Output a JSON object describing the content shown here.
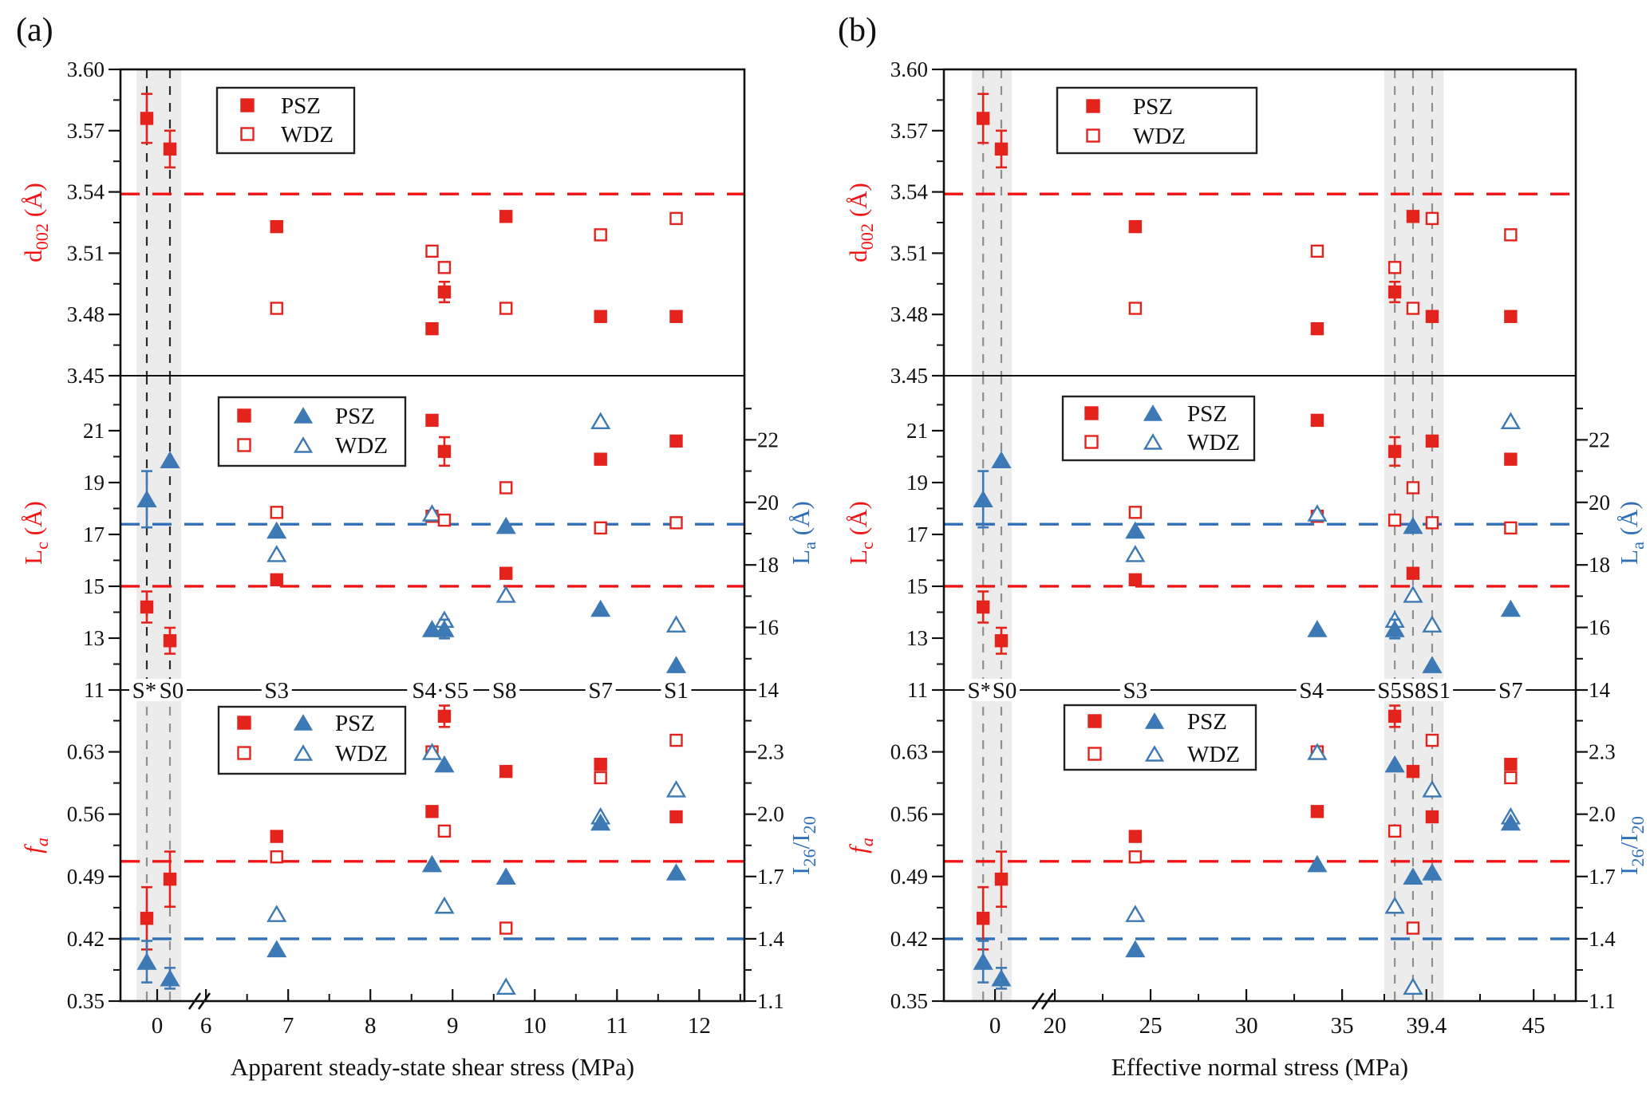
{
  "figure": {
    "background": "#ffffff",
    "colors": {
      "red": "#e3231c",
      "red_line": "#f01414",
      "blue": "#3d79b5",
      "blue_line": "#2f6fb7",
      "band": "#ececec",
      "axis": "#111111",
      "vline_dark": "#2b2b2b",
      "vline_gray": "#8f8f8f"
    }
  },
  "legend": {
    "psz": "PSZ",
    "wdz": "WDZ"
  },
  "chart_data": {
    "type": "scatter",
    "description": "XRD structural parameters (d002, Lc, La, fa, I26/I20) of PSZ and WDZ samples versus stress; panel (a) vs apparent steady-state shear stress, panel (b) vs effective normal stress",
    "subplots": {
      "top": {
        "left_label_parts": [
          {
            "t": "d"
          },
          {
            "t": "002",
            "sub": true
          },
          {
            "t": " (Å)"
          }
        ],
        "left_axis_color": "red",
        "left_range": [
          3.45,
          3.6
        ],
        "left_majors": [
          {
            "v": 3.45,
            "t": "3.45"
          },
          {
            "v": 3.48,
            "t": "3.48"
          },
          {
            "v": 3.51,
            "t": "3.51"
          },
          {
            "v": 3.54,
            "t": "3.54"
          },
          {
            "v": 3.57,
            "t": "3.57"
          },
          {
            "v": 3.6,
            "t": "3.60"
          }
        ],
        "left_minors": [
          3.465,
          3.495,
          3.525,
          3.555,
          3.585
        ],
        "hlines": [
          {
            "color": "red",
            "axis": "left",
            "value": 3.539
          }
        ],
        "legend_type": "squares"
      },
      "middle": {
        "left_label_parts": [
          {
            "t": "L"
          },
          {
            "t": "c",
            "sub": true
          },
          {
            "t": " (Å)"
          }
        ],
        "right_label_parts": [
          {
            "t": "L"
          },
          {
            "t": "a",
            "sub": true
          },
          {
            "t": " (Å)"
          }
        ],
        "left_axis_color": "red",
        "right_axis_color": "blue",
        "left_range": [
          11,
          23.12
        ],
        "right_range": [
          14,
          24.05
        ],
        "left_majors": [
          {
            "v": 11,
            "t": "11"
          },
          {
            "v": 13,
            "t": "13"
          },
          {
            "v": 15,
            "t": "15"
          },
          {
            "v": 17,
            "t": "17"
          },
          {
            "v": 19,
            "t": "19"
          },
          {
            "v": 21,
            "t": "21"
          }
        ],
        "left_minors": [
          12,
          14,
          16,
          18,
          20,
          22
        ],
        "right_majors": [
          {
            "v": 14,
            "t": "14"
          },
          {
            "v": 16,
            "t": "16"
          },
          {
            "v": 18,
            "t": "18"
          },
          {
            "v": 20,
            "t": "20"
          },
          {
            "v": 22,
            "t": "22"
          }
        ],
        "right_minors": [
          15,
          17,
          19,
          21,
          23
        ],
        "hlines": [
          {
            "color": "red",
            "axis": "left",
            "value": 15.0
          },
          {
            "color": "blue",
            "axis": "right",
            "value": 19.3
          }
        ],
        "legend_type": "squares_triangles"
      },
      "bottom": {
        "left_label_parts": [
          {
            "t": "f",
            "italic": true
          },
          {
            "t": "a",
            "sub": true,
            "italic": true
          }
        ],
        "right_label_parts": [
          {
            "t": "I"
          },
          {
            "t": "26",
            "sub": true
          },
          {
            "t": "/I"
          },
          {
            "t": "20",
            "sub": true
          }
        ],
        "left_axis_color": "red",
        "right_axis_color": "blue",
        "left_range": [
          0.35,
          0.6995
        ],
        "right_range": [
          1.1,
          2.598
        ],
        "left_majors": [
          {
            "v": 0.35,
            "t": "0.35"
          },
          {
            "v": 0.42,
            "t": "0.42"
          },
          {
            "v": 0.49,
            "t": "0.49"
          },
          {
            "v": 0.56,
            "t": "0.56"
          },
          {
            "v": 0.63,
            "t": "0.63"
          }
        ],
        "left_minors": [
          0.385,
          0.455,
          0.525,
          0.595,
          0.665
        ],
        "right_majors": [
          {
            "v": 1.1,
            "t": "1.1"
          },
          {
            "v": 1.4,
            "t": "1.4"
          },
          {
            "v": 1.7,
            "t": "1.7"
          },
          {
            "v": 2.0,
            "t": "2.0"
          },
          {
            "v": 2.3,
            "t": "2.3"
          }
        ],
        "right_minors": [
          1.25,
          1.55,
          1.85,
          2.15,
          2.45
        ],
        "hlines": [
          {
            "color": "red",
            "axis": "left",
            "value": 0.507
          },
          {
            "color": "blue",
            "axis": "right",
            "value": 1.4
          }
        ],
        "legend_type": "squares_triangles"
      }
    },
    "panels": [
      {
        "panel_label": "(a)",
        "xlabel": "Apparent steady-state shear stress (MPa)",
        "seg_a": {
          "range": [
            -0.46,
            0.48
          ],
          "ticks": [
            {
              "v": 0,
              "t": "0"
            }
          ]
        },
        "seg_b": {
          "range": [
            5.95,
            12.55
          ],
          "majors": [
            {
              "v": 6,
              "t": "6"
            },
            {
              "v": 7,
              "t": "7"
            },
            {
              "v": 8,
              "t": "8"
            },
            {
              "v": 9,
              "t": "9"
            },
            {
              "v": 10,
              "t": "10"
            },
            {
              "v": 11,
              "t": "11"
            },
            {
              "v": 12,
              "t": "12"
            }
          ],
          "minors": [
            6.5,
            7.5,
            8.5,
            9.5,
            10.5,
            11.5,
            12.5
          ]
        },
        "band_a": [
          -0.26,
          0.3
        ],
        "band_b": null,
        "vlines_a": [
          -0.13,
          0.16
        ],
        "vlines_b": [],
        "sample_labels": [
          {
            "t": "S*",
            "x": -0.16
          },
          {
            "t": "S0",
            "x": 0.18
          },
          {
            "t": "S3",
            "x": 6.86
          },
          {
            "t": "S4·S5",
            "x": 8.85
          },
          {
            "t": "S8",
            "x": 9.63
          },
          {
            "t": "S7",
            "x": 10.8
          },
          {
            "t": "S1",
            "x": 11.72
          }
        ],
        "samples": [
          {
            "name": "S*",
            "x": -0.13,
            "d002": {
              "psz": 3.576,
              "psz_err": 0.012
            },
            "lc": {
              "psz": 14.2,
              "psz_err": 0.6
            },
            "la": {
              "psz": 20.1,
              "psz_err": 0.9
            },
            "fa": {
              "psz": 0.443,
              "psz_err": 0.035
            },
            "i26_i20": {
              "psz": 1.29,
              "psz_err": 0.1
            }
          },
          {
            "name": "S0",
            "x": 0.16,
            "d002": {
              "psz": 3.561,
              "psz_err": 0.009
            },
            "lc": {
              "psz": 12.9,
              "psz_err": 0.5
            },
            "la": {
              "psz": 21.35
            },
            "fa": {
              "psz": 0.487,
              "psz_err": 0.031
            },
            "i26_i20": {
              "psz": 1.21,
              "psz_err": 0.05
            }
          },
          {
            "name": "S3",
            "x": 6.86,
            "d002": {
              "psz": 3.523,
              "wdz": 3.483
            },
            "lc": {
              "psz": 15.25,
              "wdz": 17.85
            },
            "la": {
              "psz": 19.1,
              "wdz": 18.35
            },
            "fa": {
              "psz": 0.535,
              "wdz": 0.512
            },
            "i26_i20": {
              "psz": 1.35,
              "wdz": 1.52
            }
          },
          {
            "name": "S4",
            "x": 8.75,
            "d002": {
              "psz": 3.473,
              "wdz": 3.511
            },
            "lc": {
              "psz": 21.4,
              "wdz": 17.7
            },
            "la": {
              "psz": 15.95,
              "wdz": 19.65
            },
            "fa": {
              "psz": 0.563,
              "wdz": 0.63
            },
            "i26_i20": {
              "psz": 1.76,
              "wdz": 2.3
            }
          },
          {
            "name": "S5",
            "x": 8.9,
            "d002": {
              "psz": 3.491,
              "psz_err": 0.005,
              "wdz": 3.503
            },
            "lc": {
              "psz": 20.2,
              "psz_err": 0.55,
              "wdz": 17.55
            },
            "la": {
              "psz": 15.95,
              "psz_err": 0.3,
              "wdz": 16.25
            },
            "fa": {
              "psz": 0.67,
              "psz_err": 0.012,
              "wdz": 0.541
            },
            "i26_i20": {
              "psz": 2.24,
              "wdz": 1.56
            }
          },
          {
            "name": "S8",
            "x": 9.65,
            "d002": {
              "psz": 3.528,
              "wdz": 3.483
            },
            "lc": {
              "psz": 15.5,
              "wdz": 18.8
            },
            "la": {
              "psz": 19.25,
              "wdz": 17.05
            },
            "fa": {
              "psz": 0.608,
              "wdz": 0.432
            },
            "i26_i20": {
              "psz": 1.7,
              "wdz": 1.17
            }
          },
          {
            "name": "S7",
            "x": 10.8,
            "d002": {
              "psz": 3.479,
              "wdz": 3.519
            },
            "lc": {
              "psz": 19.9,
              "wdz": 17.25
            },
            "la": {
              "psz": 16.6,
              "wdz": 22.6
            },
            "fa": {
              "psz": 0.616,
              "wdz": 0.601
            },
            "i26_i20": {
              "psz": 1.96,
              "wdz": 1.99
            }
          },
          {
            "name": "S1",
            "x": 11.72,
            "d002": {
              "psz": 3.479,
              "wdz": 3.527
            },
            "lc": {
              "psz": 20.6,
              "wdz": 17.45
            },
            "la": {
              "psz": 14.8,
              "wdz": 16.1
            },
            "fa": {
              "psz": 0.557,
              "wdz": 0.643
            },
            "i26_i20": {
              "psz": 1.72,
              "wdz": 2.12
            }
          }
        ]
      },
      {
        "panel_label": "(b)",
        "xlabel": "Effective normal stress (MPa)",
        "seg_a": {
          "range": [
            -2.67,
            2.33
          ],
          "ticks": [
            {
              "v": 0,
              "t": "0"
            }
          ]
        },
        "seg_b": {
          "range": [
            19.54,
            47.2
          ],
          "majors": [
            {
              "v": 20,
              "t": "20"
            },
            {
              "v": 25,
              "t": "25"
            },
            {
              "v": 30,
              "t": "30"
            },
            {
              "v": 35,
              "t": "35"
            },
            {
              "v": 39.4,
              "t": "39.4"
            },
            {
              "v": 45,
              "t": "45"
            }
          ],
          "minors": [
            22.5,
            27.5,
            32.5,
            37.2,
            42.2,
            46.1
          ]
        },
        "band_a": [
          -1.2,
          0.88
        ],
        "band_b": [
          37.2,
          40.3
        ],
        "vlines_a": [
          -0.62,
          0.33
        ],
        "vlines_b": [
          37.75,
          38.7,
          39.7
        ],
        "sample_labels": [
          {
            "t": "S*",
            "x": -0.8
          },
          {
            "t": "S0",
            "x": 0.5
          },
          {
            "t": "S3",
            "x": 24.2
          },
          {
            "t": "S4",
            "x": 33.4
          },
          {
            "t": "S5S8S1",
            "x": 38.75
          },
          {
            "t": "S7",
            "x": 43.8
          }
        ],
        "samples": [
          {
            "name": "S*",
            "x": -0.62,
            "d002": {
              "psz": 3.576,
              "psz_err": 0.012
            },
            "lc": {
              "psz": 14.2,
              "psz_err": 0.6
            },
            "la": {
              "psz": 20.1,
              "psz_err": 0.9
            },
            "fa": {
              "psz": 0.443,
              "psz_err": 0.035
            },
            "i26_i20": {
              "psz": 1.29,
              "psz_err": 0.1
            }
          },
          {
            "name": "S0",
            "x": 0.33,
            "d002": {
              "psz": 3.561,
              "psz_err": 0.009
            },
            "lc": {
              "psz": 12.9,
              "psz_err": 0.5
            },
            "la": {
              "psz": 21.35
            },
            "fa": {
              "psz": 0.487,
              "psz_err": 0.031
            },
            "i26_i20": {
              "psz": 1.21,
              "psz_err": 0.05
            }
          },
          {
            "name": "S3",
            "x": 24.2,
            "d002": {
              "psz": 3.523,
              "wdz": 3.483
            },
            "lc": {
              "psz": 15.25,
              "wdz": 17.85
            },
            "la": {
              "psz": 19.1,
              "wdz": 18.35
            },
            "fa": {
              "psz": 0.535,
              "wdz": 0.512
            },
            "i26_i20": {
              "psz": 1.35,
              "wdz": 1.52
            }
          },
          {
            "name": "S4",
            "x": 33.7,
            "d002": {
              "psz": 3.473,
              "wdz": 3.511
            },
            "lc": {
              "psz": 21.4,
              "wdz": 17.7
            },
            "la": {
              "psz": 15.95,
              "wdz": 19.65
            },
            "fa": {
              "psz": 0.563,
              "wdz": 0.63
            },
            "i26_i20": {
              "psz": 1.76,
              "wdz": 2.3
            }
          },
          {
            "name": "S5",
            "x": 37.75,
            "d002": {
              "psz": 3.491,
              "psz_err": 0.005,
              "wdz": 3.503
            },
            "lc": {
              "psz": 20.2,
              "psz_err": 0.55,
              "wdz": 17.55
            },
            "la": {
              "psz": 15.95,
              "psz_err": 0.3,
              "wdz": 16.25
            },
            "fa": {
              "psz": 0.67,
              "psz_err": 0.012,
              "wdz": 0.541
            },
            "i26_i20": {
              "psz": 2.24,
              "wdz": 1.56
            }
          },
          {
            "name": "S8",
            "x": 38.7,
            "d002": {
              "psz": 3.528,
              "wdz": 3.483
            },
            "lc": {
              "psz": 15.5,
              "wdz": 18.8
            },
            "la": {
              "psz": 19.25,
              "wdz": 17.05
            },
            "fa": {
              "psz": 0.608,
              "wdz": 0.432
            },
            "i26_i20": {
              "psz": 1.7,
              "wdz": 1.17
            }
          },
          {
            "name": "S1",
            "x": 39.7,
            "d002": {
              "psz": 3.479,
              "wdz": 3.527
            },
            "lc": {
              "psz": 20.6,
              "wdz": 17.45
            },
            "la": {
              "psz": 14.8,
              "wdz": 16.1
            },
            "fa": {
              "psz": 0.557,
              "wdz": 0.643
            },
            "i26_i20": {
              "psz": 1.72,
              "wdz": 2.12
            }
          },
          {
            "name": "S7",
            "x": 43.8,
            "d002": {
              "psz": 3.479,
              "wdz": 3.519
            },
            "lc": {
              "psz": 19.9,
              "wdz": 17.25
            },
            "la": {
              "psz": 16.6,
              "wdz": 22.6
            },
            "fa": {
              "psz": 0.616,
              "wdz": 0.601
            },
            "i26_i20": {
              "psz": 1.96,
              "wdz": 1.99
            }
          }
        ]
      }
    ]
  }
}
